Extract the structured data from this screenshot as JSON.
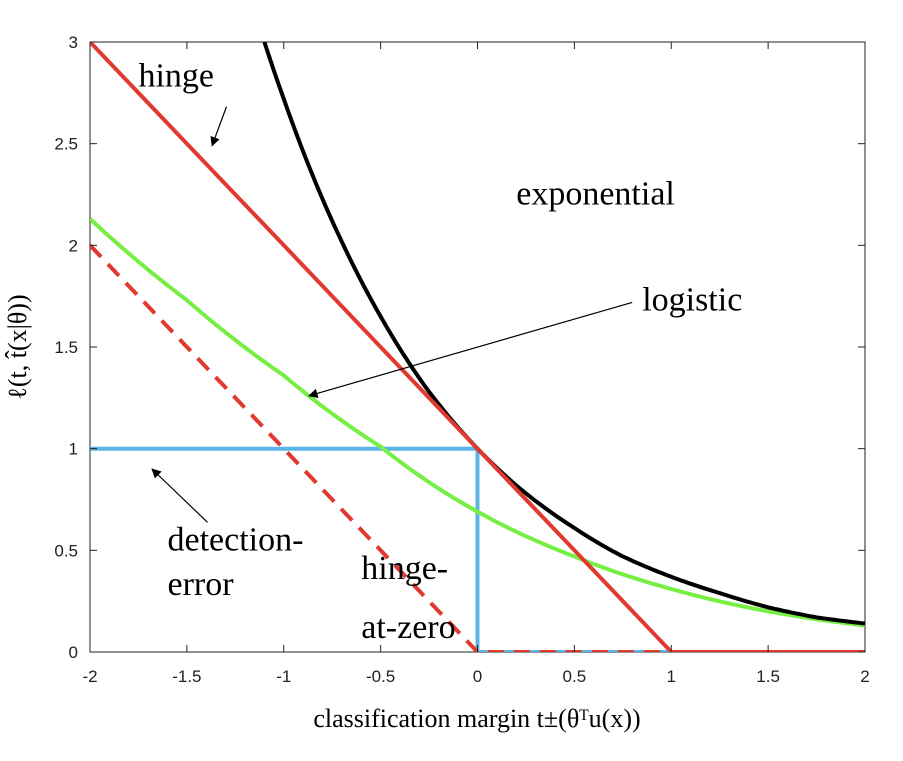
{
  "chart_data": {
    "type": "line",
    "xlabel": "classification margin t±(θᵀu(x))",
    "ylabel": "ℓ(t, t̂(x|θ))",
    "xlim": [
      -2,
      2
    ],
    "ylim": [
      0,
      3
    ],
    "xticks": [
      -2,
      -1.5,
      -1,
      -0.5,
      0,
      0.5,
      1,
      1.5,
      2
    ],
    "xtick_labels": [
      "-2",
      "-1.5",
      "-1",
      "-0.5",
      "0",
      "0.5",
      "1",
      "1.5",
      "2"
    ],
    "yticks": [
      0,
      0.5,
      1,
      1.5,
      2,
      2.5,
      3
    ],
    "ytick_labels": [
      "0",
      "0.5",
      "1",
      "1.5",
      "2",
      "2.5",
      "3"
    ],
    "grid": false,
    "series": [
      {
        "name": "hinge",
        "color": "#e03a2f",
        "dash": "solid",
        "x": [
          -2,
          -1.5,
          -1,
          -0.5,
          0,
          0.5,
          1,
          1.5,
          2
        ],
        "y": [
          3,
          2.5,
          2,
          1.5,
          1,
          0.5,
          0,
          0,
          0
        ]
      },
      {
        "name": "exponential",
        "color": "#000000",
        "dash": "solid",
        "x": [
          -1.1,
          -1,
          -0.75,
          -0.5,
          -0.25,
          0,
          0.25,
          0.5,
          0.75,
          1,
          1.25,
          1.5,
          1.75,
          2
        ],
        "y": [
          3.0,
          2.72,
          2.12,
          1.65,
          1.28,
          1.0,
          0.78,
          0.61,
          0.47,
          0.37,
          0.29,
          0.22,
          0.17,
          0.14
        ]
      },
      {
        "name": "logistic",
        "color": "#77ee44",
        "dash": "solid",
        "x": [
          -2,
          -1.5,
          -1,
          -0.5,
          0,
          0.5,
          1,
          1.5,
          2
        ],
        "y": [
          2.13,
          1.73,
          1.36,
          1.01,
          0.69,
          0.47,
          0.31,
          0.2,
          0.13
        ]
      },
      {
        "name": "hinge-at-zero",
        "color": "#e03a2f",
        "dash": "dashed",
        "x": [
          -2,
          -1.5,
          -1,
          -0.5,
          0,
          0.5,
          1,
          1.5,
          2
        ],
        "y": [
          2,
          1.5,
          1,
          0.5,
          0,
          0,
          0,
          0,
          0
        ]
      },
      {
        "name": "detection-error",
        "color": "#5ab4e8",
        "dash": "solid",
        "x": [
          -2,
          0,
          0,
          2
        ],
        "y": [
          1,
          1,
          0,
          0
        ]
      }
    ],
    "annotations": [
      {
        "text": "hinge",
        "x": -1.75,
        "y": 2.78,
        "arrow_to": [
          -1.37,
          2.49
        ]
      },
      {
        "text": "exponential",
        "x": 0.2,
        "y": 2.2
      },
      {
        "text": "logistic",
        "x": 0.85,
        "y": 1.68,
        "arrow_to": [
          -0.87,
          1.26
        ]
      },
      {
        "text": "detection-",
        "x": -1.6,
        "y": 0.5,
        "arrow_to": [
          -1.68,
          0.9
        ]
      },
      {
        "text": "error",
        "x": -1.6,
        "y": 0.28
      },
      {
        "text": "hinge-",
        "x": -0.6,
        "y": 0.36
      },
      {
        "text": "at-zero",
        "x": -0.6,
        "y": 0.07
      }
    ]
  }
}
